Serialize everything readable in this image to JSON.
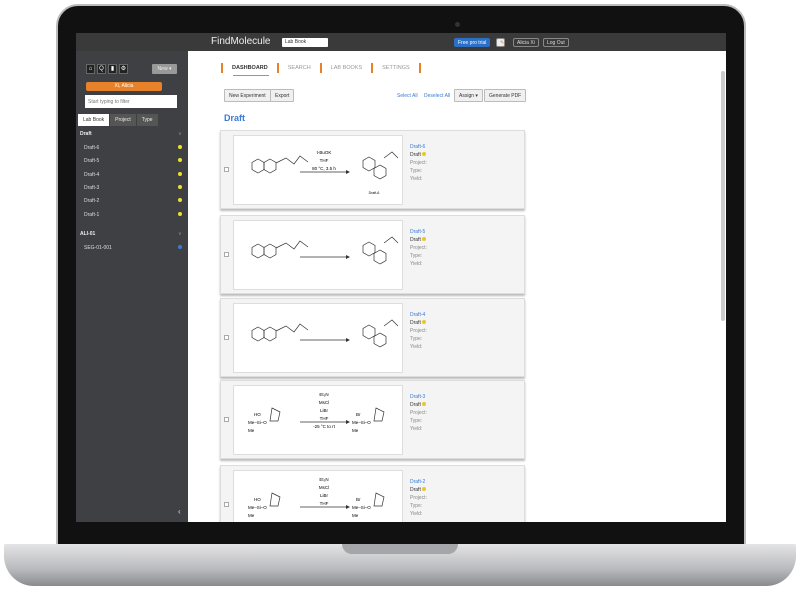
{
  "topbar": {
    "logo": "FindMolecule",
    "labbook_select": "Lab Book",
    "free_trial": "Free pro trial",
    "user": "Alicia Xi",
    "logout": "Log Out"
  },
  "sidebar": {
    "new_button": "New ▾",
    "user_select": "Xi, Alicia",
    "filter_placeholder": "Start typing to filter",
    "tabs": [
      "Lab Book",
      "Project",
      "Type"
    ],
    "groups": [
      {
        "name": "Draft",
        "items": [
          "Draft-6",
          "Draft-5",
          "Draft-4",
          "Draft-3",
          "Draft-2",
          "Draft-1"
        ]
      },
      {
        "name": "ALI-01",
        "items": [
          "SEG-01-001"
        ]
      }
    ],
    "collapse": "‹"
  },
  "main": {
    "nav": [
      "DASHBOARD",
      "SEARCH",
      "LAB BOOKS",
      "SETTINGS"
    ],
    "new_experiment": "New Experiment",
    "export": "Export",
    "select_all": "Select All",
    "deselect_all": "Deselect All",
    "assign": "Assign ▾",
    "generate_pdf": "Generate PDF",
    "heading": "Draft",
    "cards": [
      {
        "title": "Draft-6",
        "status": "Draft",
        "reagents": [
          "t-BuOK",
          "THF",
          "80 °C, 3.5 h"
        ],
        "product_label": "Draft-6"
      },
      {
        "title": "Draft-5",
        "status": "Draft",
        "reagents": []
      },
      {
        "title": "Draft-4",
        "status": "Draft",
        "reagents": []
      },
      {
        "title": "Draft-3",
        "status": "Draft",
        "reagents": [
          "Et₃N",
          "MsCl",
          "LiBr",
          "THF",
          "-25 °C to rt"
        ],
        "left_groups": [
          "HO",
          "Me–Si–O",
          "Me"
        ],
        "right_groups": [
          "Br",
          "Me–Si–O",
          "Me"
        ]
      },
      {
        "title": "Draft-2",
        "status": "Draft",
        "reagents": [
          "Et₃N",
          "MsCl",
          "LiBr",
          "THF"
        ],
        "left_groups": [
          "HO",
          "Me–Si–O",
          "Me"
        ],
        "right_groups": [
          "Br",
          "Me–Si–O",
          "Me"
        ]
      }
    ],
    "fields": [
      "Project:",
      "Type:",
      "Yield:"
    ]
  },
  "colors": {
    "accent": "#e8822a",
    "link": "#3a7bd5",
    "sidebar": "#3e4043",
    "status_dot": "#e9e12a"
  }
}
